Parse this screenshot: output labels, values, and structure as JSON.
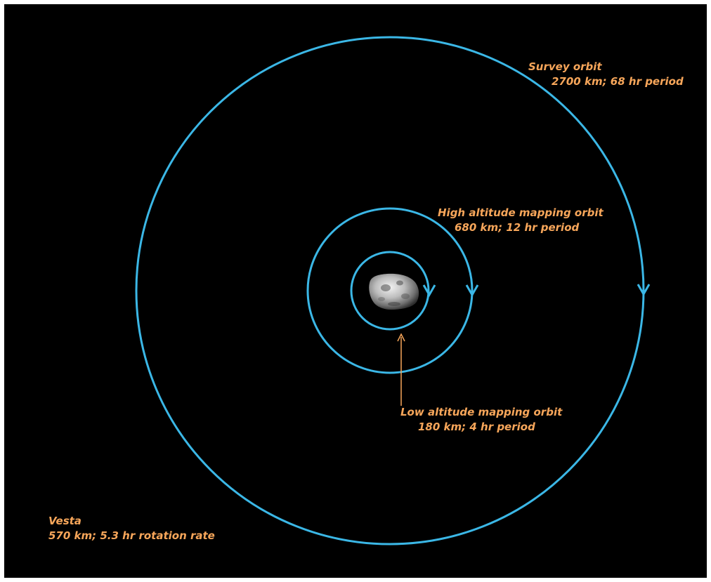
{
  "colors": {
    "background": "#000000",
    "orbit": "#3bb7e6",
    "label": "#f7a65a",
    "pointer": "#f7a65a"
  },
  "body": {
    "name": "Vesta",
    "details": "570 km; 5.3 hr rotation rate"
  },
  "orbits": [
    {
      "name": "Survey orbit",
      "details": "2700 km; 68 hr period"
    },
    {
      "name": "High altitude mapping orbit",
      "details": "680 km; 12 hr period"
    },
    {
      "name": "Low altitude mapping orbit",
      "details": "180 km; 4 hr period"
    }
  ]
}
